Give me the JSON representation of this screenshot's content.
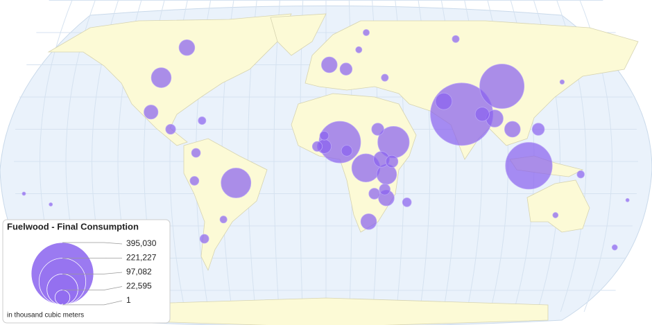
{
  "legend": {
    "title": "Fuelwood - Final Consumption",
    "sizes": [
      {
        "value": 395030,
        "label": "395,030"
      },
      {
        "value": 221227,
        "label": "221,227"
      },
      {
        "value": 97082,
        "label": "97,082"
      },
      {
        "value": 22595,
        "label": "22,595"
      },
      1
    ],
    "note": "in thousand cubic meters"
  },
  "color": "#8a63ef",
  "bubbles": [
    {
      "lon": 79,
      "lat": 22,
      "value": 395030
    },
    {
      "lon": 117,
      "lat": -2,
      "value": 221000
    },
    {
      "lon": 104,
      "lat": 35,
      "value": 200000
    },
    {
      "lon": 8,
      "lat": 9,
      "value": 175000
    },
    {
      "lon": 39,
      "lat": 9,
      "value": 100000
    },
    {
      "lon": -52,
      "lat": -10,
      "value": 90000
    },
    {
      "lon": 23,
      "lat": -3,
      "value": 80000
    },
    {
      "lon": -98,
      "lat": 39,
      "value": 40000
    },
    {
      "lon": 35,
      "lat": -6,
      "value": 40000
    },
    {
      "lon": 98,
      "lat": 20,
      "value": 30000
    },
    {
      "lon": 69,
      "lat": 28,
      "value": 28000
    },
    {
      "lon": -85,
      "lat": 53,
      "value": 25000
    },
    {
      "lon": 108,
      "lat": 15,
      "value": 25000
    },
    {
      "lon": 32,
      "lat": 1,
      "value": 25000
    },
    {
      "lon": 35,
      "lat": -17,
      "value": 25000
    },
    {
      "lon": 25,
      "lat": -28,
      "value": 25000
    },
    {
      "lon": 2,
      "lat": 45,
      "value": 25000
    },
    {
      "lon": -102,
      "lat": 23,
      "value": 20000
    },
    {
      "lon": 91,
      "lat": 22,
      "value": 20000
    },
    {
      "lon": -1,
      "lat": 7,
      "value": 20000
    },
    {
      "lon": 30,
      "lat": 15,
      "value": 15000
    },
    {
      "lon": 38,
      "lat": 0,
      "value": 15000
    },
    {
      "lon": 123,
      "lat": 15,
      "value": 15000
    },
    {
      "lon": 12,
      "lat": 43,
      "value": 15000
    },
    {
      "lon": 28,
      "lat": -15,
      "value": 12000
    },
    {
      "lon": 12,
      "lat": 5,
      "value": 12000
    },
    {
      "lon": 34,
      "lat": -13,
      "value": 12000
    },
    {
      "lon": -90,
      "lat": 15,
      "value": 10000
    },
    {
      "lon": -5,
      "lat": 7,
      "value": 10000
    },
    {
      "lon": -1,
      "lat": 12,
      "value": 8000
    },
    {
      "lon": 47,
      "lat": -19,
      "value": 8000
    },
    {
      "lon": -76,
      "lat": -9,
      "value": 8000
    },
    {
      "lon": -75,
      "lat": 4,
      "value": 8000
    },
    {
      "lon": -72,
      "lat": -36,
      "value": 8000
    },
    {
      "lon": -72,
      "lat": 19,
      "value": 6000
    },
    {
      "lon": 147,
      "lat": -6,
      "value": 5500
    },
    {
      "lon": -60,
      "lat": -27,
      "value": 5000
    },
    {
      "lon": 35,
      "lat": 39,
      "value": 5000
    },
    {
      "lon": 80,
      "lat": 57,
      "value": 5000
    },
    {
      "lon": 134,
      "lat": -25,
      "value": 3000
    },
    {
      "lon": 172,
      "lat": -40,
      "value": 3000
    },
    {
      "lon": 140,
      "lat": 37,
      "value": 2000
    },
    {
      "lon": 20,
      "lat": 52,
      "value": 4000
    },
    {
      "lon": 25,
      "lat": 60,
      "value": 4000
    },
    {
      "lon": -175,
      "lat": -15,
      "value": 300
    },
    {
      "lon": -160,
      "lat": -20,
      "value": 300
    },
    {
      "lon": 175,
      "lat": -18,
      "value": 300
    }
  ]
}
